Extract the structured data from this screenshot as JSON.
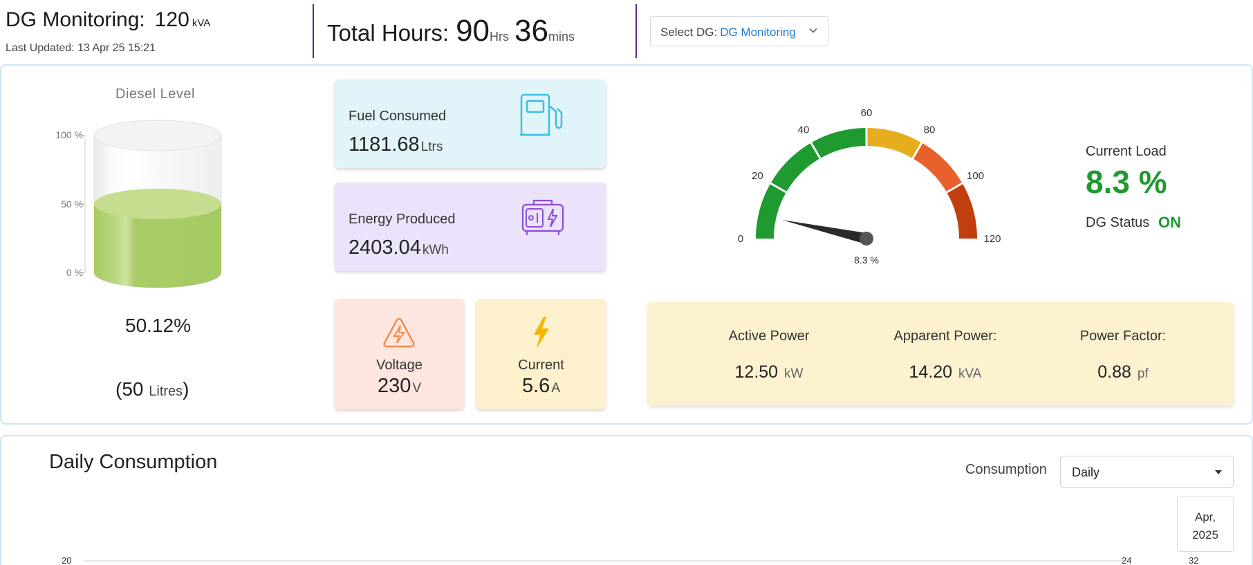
{
  "header": {
    "title": "DG Monitoring:",
    "capacity_value": "120",
    "capacity_unit": "kVA",
    "last_updated": "Last Updated: 13 Apr 25 15:21",
    "total_hours_label": "Total Hours:",
    "hours_value": "90",
    "hours_unit": "Hrs",
    "mins_value": "36",
    "mins_unit": "mins",
    "select_dg_label": "Select DG:",
    "select_dg_value": "DG Monitoring"
  },
  "diesel": {
    "title": "Diesel Level",
    "level_fraction": 0.5012,
    "axis_labels": [
      "100 %",
      "50 %",
      "0 %"
    ],
    "percent_text": "50.12%",
    "litres_open": "(50",
    "litres_unit": "Litres",
    "litres_close": ")"
  },
  "fuel": {
    "label": "Fuel Consumed",
    "value": "1181.68",
    "unit": "Ltrs"
  },
  "energy": {
    "label": "Energy Produced",
    "value": "2403.04",
    "unit": "kWh"
  },
  "voltage": {
    "label": "Voltage",
    "value": "230",
    "unit": "V"
  },
  "current": {
    "label": "Current",
    "value": "5.6",
    "unit": "A"
  },
  "gauge": {
    "min": 0,
    "max": 120,
    "value": 8.3,
    "value_text": "8.3 %",
    "ticks": [
      "0",
      "20",
      "40",
      "60",
      "80",
      "100",
      "120"
    ],
    "bands": [
      {
        "from": 0,
        "to": 60,
        "color": "#1f9a30"
      },
      {
        "from": 60,
        "to": 80,
        "color": "#e6ad1f"
      },
      {
        "from": 80,
        "to": 100,
        "color": "#e8602b"
      },
      {
        "from": 100,
        "to": 120,
        "color": "#c13e0f"
      }
    ]
  },
  "load": {
    "label": "Current Load",
    "value": "8.3 %",
    "status_label": "DG Status",
    "status_value": "ON"
  },
  "power": {
    "active_label": "Active Power",
    "active_value": "12.50",
    "active_unit": "kW",
    "apparent_label": "Apparent Power:",
    "apparent_value": "14.20",
    "apparent_unit": "kVA",
    "pf_label": "Power Factor:",
    "pf_value": "0.88",
    "pf_unit": "pf"
  },
  "daily": {
    "title": "Daily Consumption",
    "consumption_label": "Consumption",
    "period_value": "Daily",
    "date_line1": "Apr,",
    "date_line2": "2025",
    "axis_left": "20",
    "axis_right1": "24",
    "axis_right2": "32"
  },
  "colors": {
    "accent": "#1c7cd6",
    "green": "#1f9a30",
    "divider": "#5b2a86",
    "fuel_icon": "#3cc0dc",
    "energy_icon": "#8a4fd6",
    "volt_icon": "#f08a4b",
    "bolt": "#f2b705"
  }
}
